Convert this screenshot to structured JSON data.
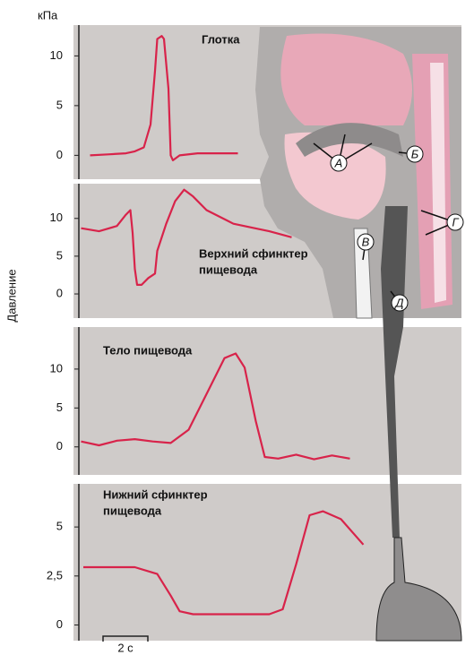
{
  "unit": "кПа",
  "y_axis_label": "Давление",
  "scale_bar": {
    "value": 2,
    "label": "2 с"
  },
  "illustration_labels": [
    "А",
    "Б",
    "В",
    "Г",
    "Д"
  ],
  "chart_data": [
    {
      "type": "line",
      "title": [
        "Глотка"
      ],
      "color": "#d8234a",
      "x": [
        0.5,
        1.3,
        2.1,
        2.5,
        2.9,
        3.2,
        3.4,
        3.5,
        3.7,
        3.8,
        4.0,
        4.1,
        4.2,
        4.5,
        5.3,
        7.1
      ],
      "values": [
        0,
        0.1,
        0.2,
        0.4,
        0.8,
        3.1,
        8.5,
        11.7,
        12,
        11.7,
        6.7,
        0,
        -0.5,
        0,
        0.2,
        0.2
      ],
      "xlim": [
        0,
        13
      ],
      "ylim": [
        -2.4,
        13.1
      ],
      "yticks": [
        0,
        5,
        10
      ]
    },
    {
      "type": "line",
      "title": [
        "Верхний сфинктер",
        "пищевода"
      ],
      "color": "#d8234a",
      "x": [
        0.1,
        0.9,
        1.7,
        2.1,
        2.3,
        2.4,
        2.5,
        2.6,
        2.8,
        3.1,
        3.4,
        3.5,
        3.9,
        4.3,
        4.7,
        5.1,
        5.7,
        6.9,
        8.5,
        9.5
      ],
      "values": [
        8.7,
        8.3,
        9,
        10.5,
        11.1,
        8.1,
        3.3,
        1.2,
        1.2,
        2.1,
        2.7,
        5.7,
        9.3,
        12.3,
        13.8,
        12.9,
        11.1,
        9.3,
        8.3,
        7.5
      ],
      "xlim": [
        0,
        13
      ],
      "ylim": [
        -3.2,
        14.6
      ],
      "yticks": [
        0,
        5,
        10
      ]
    },
    {
      "type": "line",
      "title": [
        "Тело пищевода"
      ],
      "color": "#d8234a",
      "x": [
        0.1,
        0.9,
        1.7,
        2.5,
        3.3,
        4.1,
        4.9,
        5.7,
        6.5,
        7.0,
        7.4,
        7.9,
        8.3,
        8.9,
        9.7,
        10.5,
        11.3,
        12.1
      ],
      "values": [
        0.7,
        0.2,
        0.8,
        1,
        0.7,
        0.5,
        2.2,
        6.8,
        11.4,
        12,
        10.2,
        3.3,
        -1.3,
        -1.5,
        -1,
        -1.6,
        -1.1,
        -1.5
      ],
      "xlim": [
        0,
        13
      ],
      "ylim": [
        -3.6,
        15.4
      ],
      "yticks": [
        0,
        5,
        10
      ]
    },
    {
      "type": "line",
      "title": [
        "Нижний сфинктер",
        "пищевода"
      ],
      "color": "#d8234a",
      "x": [
        0.2,
        2.5,
        3.5,
        4.1,
        4.5,
        5.1,
        8.5,
        9.1,
        9.7,
        10.3,
        10.9,
        11.7,
        12.7
      ],
      "values": [
        2.95,
        2.95,
        2.6,
        1.5,
        0.7,
        0.55,
        0.55,
        0.8,
        3.1,
        5.6,
        5.8,
        5.4,
        4.1
      ],
      "xlim": [
        0,
        13
      ],
      "ylim": [
        -0.8,
        7.2
      ],
      "yticks": [
        0,
        {
          "value": 2.5,
          "label": "2,5"
        },
        5
      ]
    }
  ]
}
